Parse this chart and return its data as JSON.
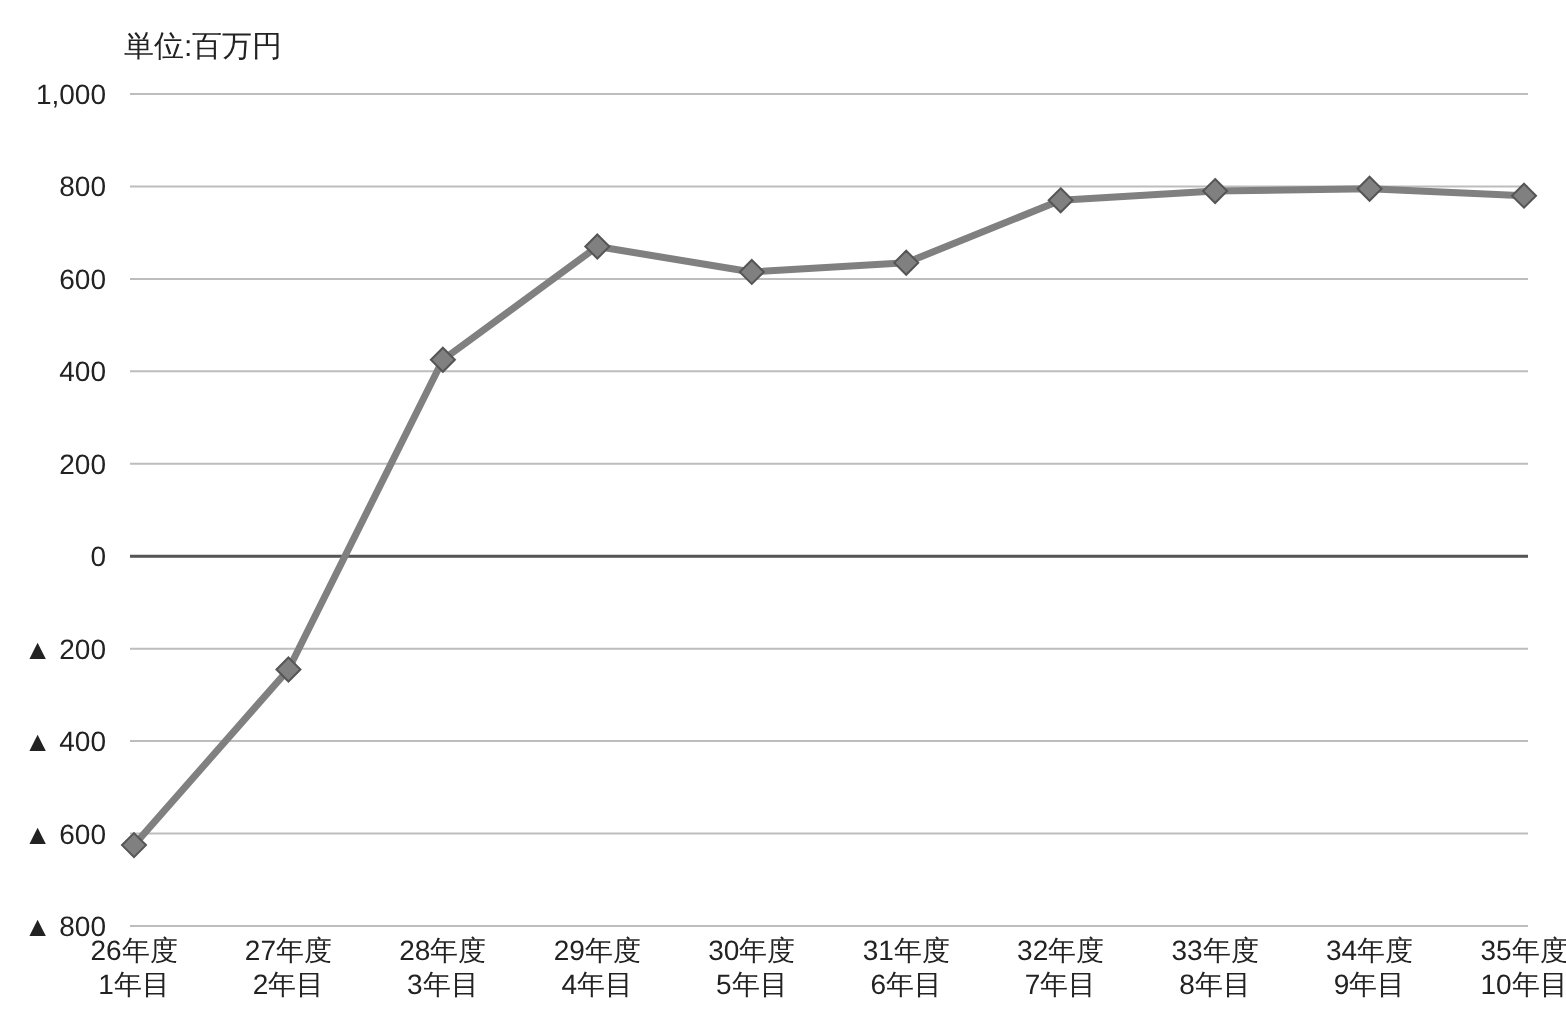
{
  "chart_data": {
    "type": "line",
    "ylabel": "単位:百万円",
    "categories": [
      "26年度\n1年目",
      "27年度\n2年目",
      "28年度\n3年目",
      "29年度\n4年目",
      "30年度\n5年目",
      "31年度\n6年目",
      "32年度\n7年目",
      "33年度\n8年目",
      "34年度\n9年目",
      "35年度\n10年目"
    ],
    "series": [
      {
        "color": "#808080",
        "values": [
          -625,
          -245,
          425,
          670,
          615,
          635,
          770,
          790,
          795,
          780
        ]
      }
    ],
    "ylim": [
      -800,
      1000
    ],
    "yticks": [
      {
        "value": 1000,
        "label": "1,000"
      },
      800,
      600,
      400,
      200,
      0,
      {
        "value": -200,
        "label": "▲ 200"
      },
      {
        "value": -400,
        "label": "▲ 400"
      },
      {
        "value": -600,
        "label": "▲ 600"
      },
      {
        "value": -800,
        "label": "▲ 800"
      }
    ],
    "grid": "y",
    "marker": "diamond",
    "ref_lines": [
      {
        "axis": "y",
        "value": 0,
        "color": "#555555"
      }
    ]
  }
}
